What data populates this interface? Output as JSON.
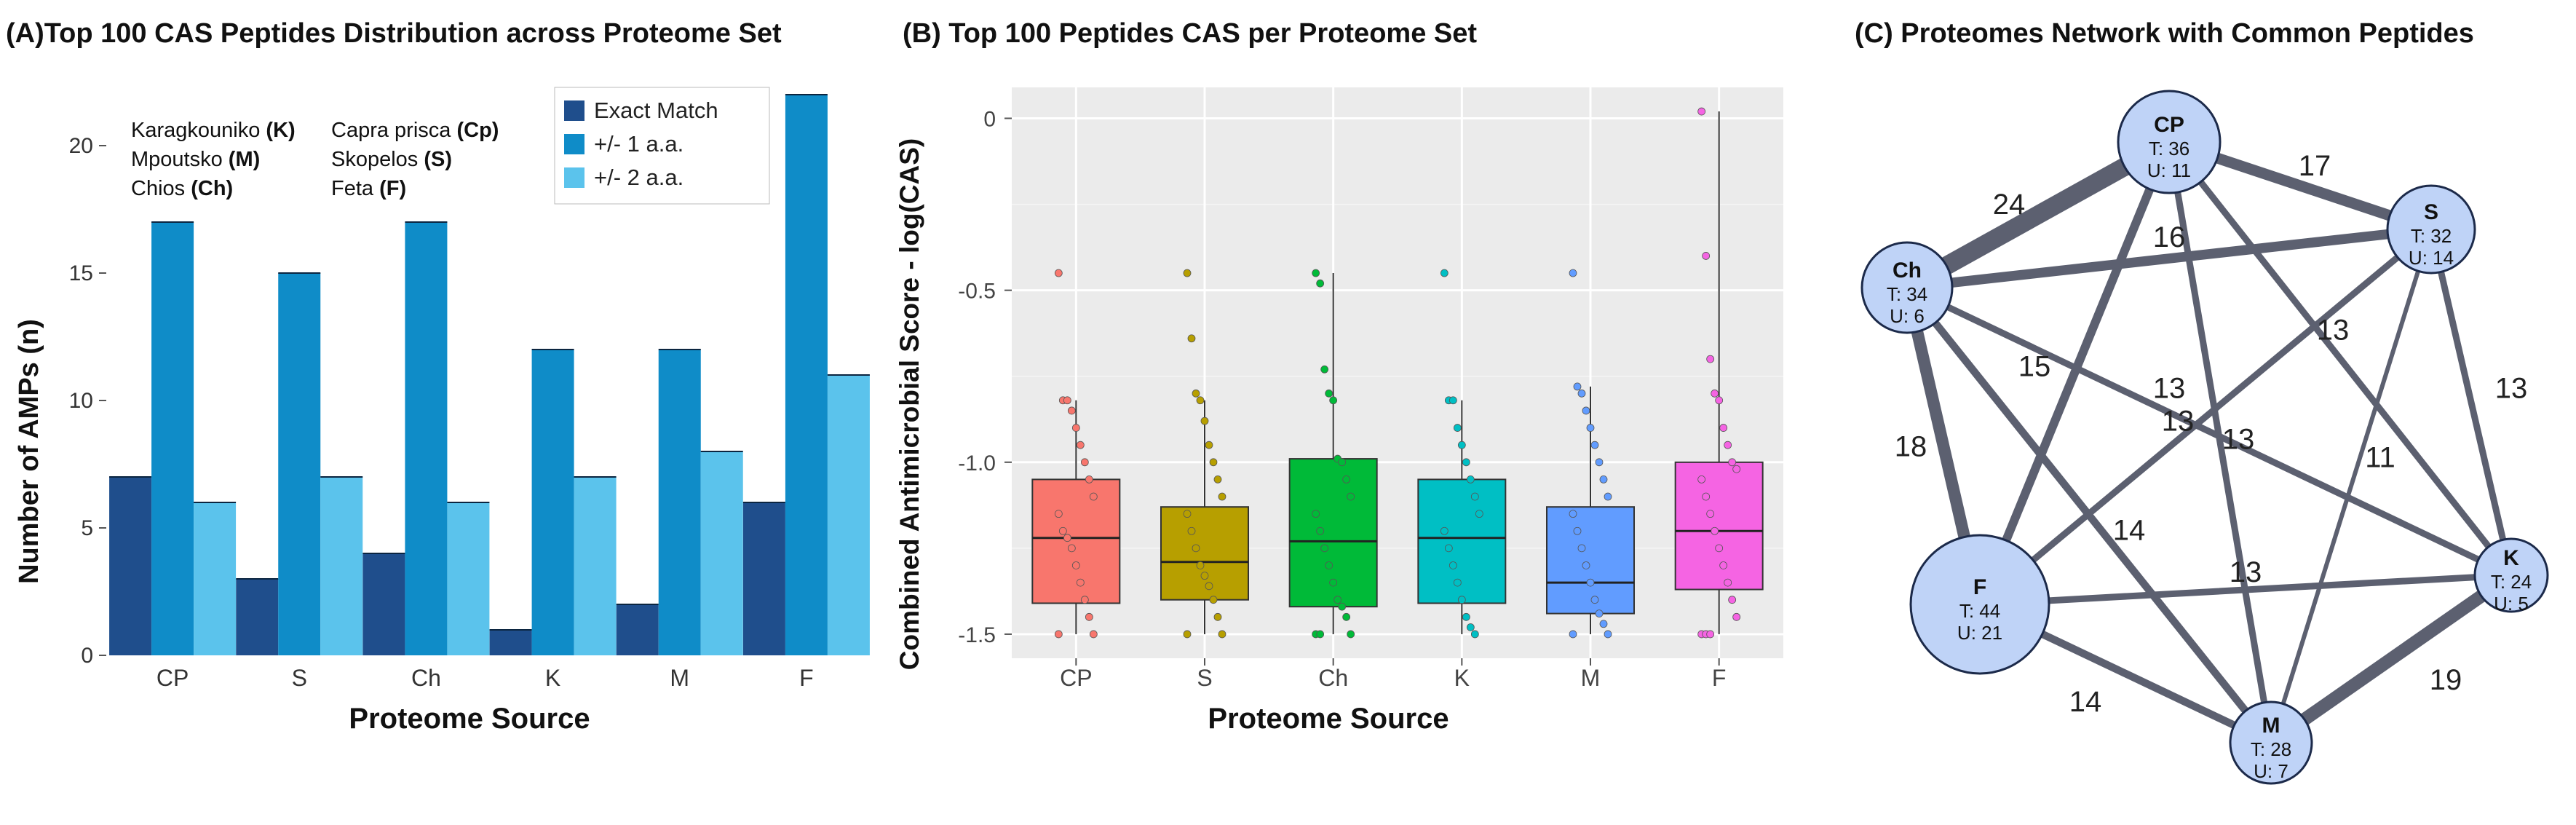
{
  "panels": {
    "a": {
      "title": "(A)Top 100 CAS Peptides Distribution across Proteome Set",
      "xlabel": "Proteome Source",
      "ylabel": "Number of AMPs (n)",
      "proteome_key": [
        {
          "name": "Karagkouniko",
          "abbr": "(K)"
        },
        {
          "name": "Mpoutsko",
          "abbr": "(M)"
        },
        {
          "name": "Chios",
          "abbr": "(Ch)"
        },
        {
          "name": "Capra prisca",
          "abbr": "(Cp)"
        },
        {
          "name": "Skopelos",
          "abbr": "(S)"
        },
        {
          "name": "Feta",
          "abbr": "(F)"
        }
      ]
    },
    "b": {
      "title": "(B)  Top 100 Peptides CAS per Proteome Set",
      "xlabel": "Proteome Source",
      "ylabel": "Combined Antimicrobial Score - log(CAS)"
    },
    "c": {
      "title": "(C)  Proteomes Network with Common Peptides"
    }
  },
  "chart_data": [
    {
      "id": "a",
      "type": "bar",
      "title": "(A)Top 100 CAS Peptides Distribution across Proteome Set",
      "xlabel": "Proteome Source",
      "ylabel": "Number of AMPs (n)",
      "categories": [
        "CP",
        "S",
        "Ch",
        "K",
        "M",
        "F"
      ],
      "ylim": [
        0,
        22
      ],
      "yticks": [
        0,
        5,
        10,
        15,
        20
      ],
      "legend_position": "top-right",
      "series": [
        {
          "name": "Exact Match",
          "color": "#1f4e8c",
          "values": [
            7,
            3,
            4,
            1,
            2,
            6
          ]
        },
        {
          "name": "+/- 1 a.a.",
          "color": "#0f8cc8",
          "values": [
            17,
            15,
            17,
            12,
            12,
            22
          ]
        },
        {
          "name": "+/- 2 a.a.",
          "color": "#5bc3ec",
          "values": [
            6,
            7,
            6,
            7,
            8,
            11
          ]
        }
      ]
    },
    {
      "id": "b",
      "type": "box",
      "title": "(B)  Top 100 Peptides CAS per Proteome Set",
      "xlabel": "Proteome Source",
      "ylabel": "Combined Antimicrobial Score - log(CAS)",
      "categories": [
        "CP",
        "S",
        "Ch",
        "K",
        "M",
        "F"
      ],
      "ylim": [
        -1.57,
        0.09
      ],
      "yticks": [
        0,
        -0.5,
        -1.0,
        -1.5
      ],
      "ytick_labels": [
        "0",
        "-0.5",
        "-1.0",
        "-1.5"
      ],
      "grid": true,
      "boxes": [
        {
          "name": "CP",
          "color": "#f8766d",
          "q1": -1.41,
          "median": -1.22,
          "q3": -1.05,
          "whisker_low": -1.5,
          "whisker_high": -0.82,
          "points": [
            -0.45,
            -0.82,
            -0.82,
            -0.85,
            -0.9,
            -0.95,
            -1.0,
            -1.05,
            -1.1,
            -1.15,
            -1.2,
            -1.22,
            -1.25,
            -1.3,
            -1.35,
            -1.4,
            -1.45,
            -1.5,
            -1.5
          ]
        },
        {
          "name": "S",
          "color": "#b79f00",
          "q1": -1.4,
          "median": -1.29,
          "q3": -1.13,
          "whisker_low": -1.5,
          "whisker_high": -0.82,
          "points": [
            -0.45,
            -0.64,
            -0.8,
            -0.82,
            -0.88,
            -0.95,
            -1.0,
            -1.05,
            -1.1,
            -1.15,
            -1.2,
            -1.25,
            -1.3,
            -1.33,
            -1.36,
            -1.4,
            -1.45,
            -1.5,
            -1.5
          ]
        },
        {
          "name": "Ch",
          "color": "#00ba38",
          "q1": -1.42,
          "median": -1.23,
          "q3": -0.99,
          "whisker_low": -1.5,
          "whisker_high": -0.45,
          "points": [
            -0.45,
            -0.48,
            -0.73,
            -0.8,
            -0.82,
            -0.99,
            -1.0,
            -1.05,
            -1.1,
            -1.15,
            -1.2,
            -1.25,
            -1.3,
            -1.35,
            -1.4,
            -1.42,
            -1.45,
            -1.5,
            -1.5,
            -1.5
          ]
        },
        {
          "name": "K",
          "color": "#00bfc4",
          "q1": -1.41,
          "median": -1.22,
          "q3": -1.05,
          "whisker_low": -1.5,
          "whisker_high": -0.82,
          "points": [
            -0.45,
            -0.82,
            -0.82,
            -0.9,
            -0.95,
            -1.0,
            -1.05,
            -1.1,
            -1.15,
            -1.2,
            -1.25,
            -1.3,
            -1.35,
            -1.4,
            -1.45,
            -1.48,
            -1.5
          ]
        },
        {
          "name": "M",
          "color": "#619cff",
          "q1": -1.44,
          "median": -1.35,
          "q3": -1.13,
          "whisker_low": -1.5,
          "whisker_high": -0.78,
          "points": [
            -0.45,
            -0.78,
            -0.8,
            -0.85,
            -0.9,
            -0.95,
            -1.0,
            -1.05,
            -1.1,
            -1.15,
            -1.2,
            -1.25,
            -1.3,
            -1.35,
            -1.4,
            -1.44,
            -1.47,
            -1.5,
            -1.5
          ]
        },
        {
          "name": "F",
          "color": "#f564e3",
          "q1": -1.37,
          "median": -1.2,
          "q3": -1.0,
          "whisker_low": -1.5,
          "whisker_high": 0.02,
          "points": [
            0.02,
            -0.4,
            -0.7,
            -0.8,
            -0.82,
            -0.9,
            -0.95,
            -1.0,
            -1.02,
            -1.05,
            -1.1,
            -1.15,
            -1.2,
            -1.25,
            -1.3,
            -1.35,
            -1.4,
            -1.45,
            -1.5,
            -1.5,
            -1.5
          ]
        }
      ]
    },
    {
      "id": "c",
      "type": "network",
      "title": "(C)  Proteomes Network with Common Peptides",
      "nodes": [
        {
          "id": "CP",
          "total": "T: 36",
          "unique": "U: 11",
          "radius": 70
        },
        {
          "id": "S",
          "total": "T: 32",
          "unique": "U: 14",
          "radius": 60
        },
        {
          "id": "Ch",
          "total": "T: 34",
          "unique": "U: 6",
          "radius": 62
        },
        {
          "id": "K",
          "total": "T: 24",
          "unique": "U: 5",
          "radius": 50
        },
        {
          "id": "F",
          "total": "T: 44",
          "unique": "U: 21",
          "radius": 95
        },
        {
          "id": "M",
          "total": "T: 28",
          "unique": "U: 7",
          "radius": 56
        }
      ],
      "edges": [
        {
          "source": "CP",
          "target": "Ch",
          "weight": 24
        },
        {
          "source": "CP",
          "target": "S",
          "weight": 17
        },
        {
          "source": "Ch",
          "target": "S",
          "weight": 16
        },
        {
          "source": "CP",
          "target": "M",
          "weight": 13
        },
        {
          "source": "CP",
          "target": "K",
          "weight": 13
        },
        {
          "source": "CP",
          "target": "F",
          "weight": 15
        },
        {
          "source": "S",
          "target": "F",
          "weight": 13
        },
        {
          "source": "S",
          "target": "M",
          "weight": 11
        },
        {
          "source": "S",
          "target": "K",
          "weight": 13
        },
        {
          "source": "Ch",
          "target": "K",
          "weight": 13
        },
        {
          "source": "Ch",
          "target": "F",
          "weight": 18
        },
        {
          "source": "Ch",
          "target": "M",
          "weight": 14
        },
        {
          "source": "F",
          "target": "K",
          "weight": 13
        },
        {
          "source": "F",
          "target": "M",
          "weight": 14
        },
        {
          "source": "K",
          "target": "M",
          "weight": 19
        }
      ]
    }
  ]
}
